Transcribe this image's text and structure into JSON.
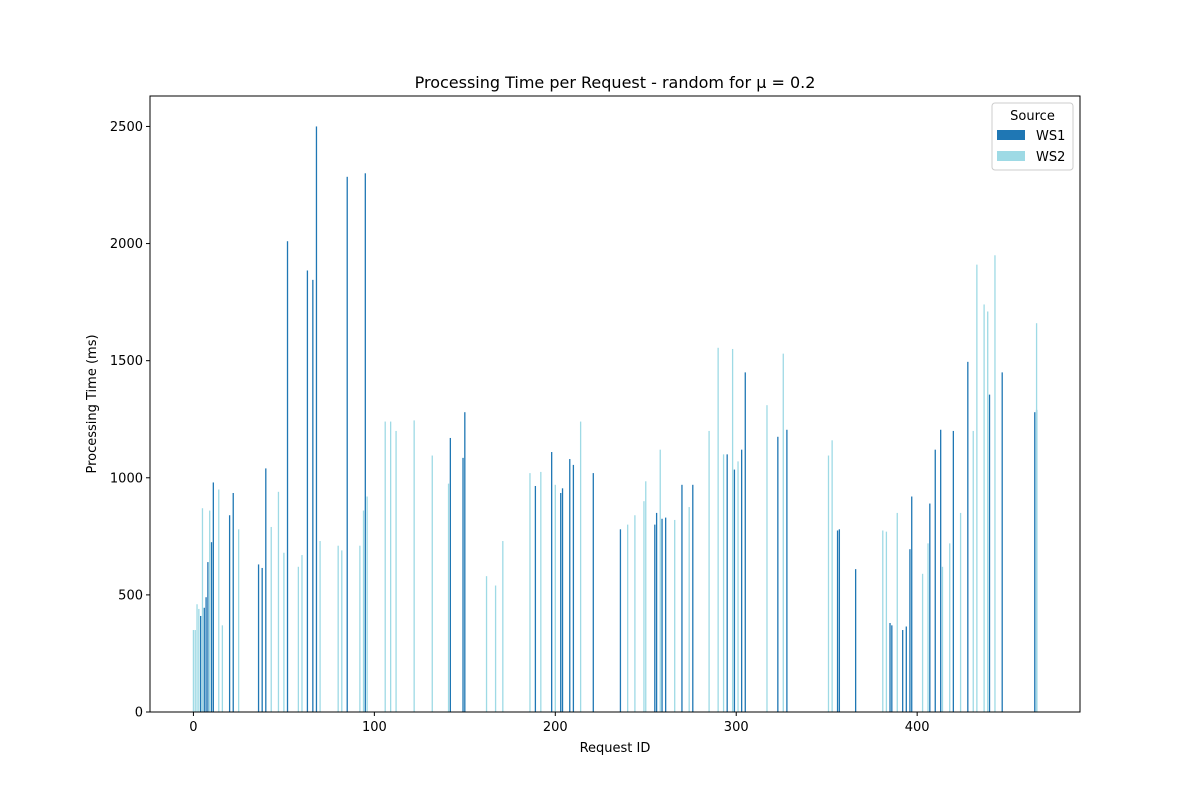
{
  "chart_data": {
    "type": "bar",
    "title": "Processing Time per Request - random for μ = 0.2",
    "xlabel": "Request ID",
    "ylabel": "Processing Time (ms)",
    "xlim": [
      -24,
      490
    ],
    "ylim": [
      0,
      2630
    ],
    "xticks": [
      0,
      100,
      200,
      300,
      400
    ],
    "yticks": [
      0,
      500,
      1000,
      1500,
      2000,
      2500
    ],
    "grid": false,
    "legend": {
      "title": "Source",
      "placement": "top-right"
    },
    "series": [
      {
        "name": "WS1",
        "color": "#1f77b4",
        "points": [
          [
            4,
            410
          ],
          [
            6,
            445
          ],
          [
            7,
            490
          ],
          [
            8,
            640
          ],
          [
            10,
            725
          ],
          [
            11,
            980
          ],
          [
            20,
            840
          ],
          [
            22,
            935
          ],
          [
            36,
            630
          ],
          [
            38,
            615
          ],
          [
            40,
            1040
          ],
          [
            52,
            2010
          ],
          [
            63,
            1885
          ],
          [
            66,
            1845
          ],
          [
            68,
            2500
          ],
          [
            85,
            2285
          ],
          [
            95,
            2300
          ],
          [
            142,
            1170
          ],
          [
            149,
            1085
          ],
          [
            150,
            1280
          ],
          [
            189,
            965
          ],
          [
            198,
            1110
          ],
          [
            203,
            935
          ],
          [
            204,
            955
          ],
          [
            208,
            1080
          ],
          [
            210,
            1055
          ],
          [
            221,
            1020
          ],
          [
            236,
            780
          ],
          [
            255,
            800
          ],
          [
            256,
            850
          ],
          [
            259,
            825
          ],
          [
            261,
            830
          ],
          [
            270,
            970
          ],
          [
            276,
            970
          ],
          [
            295,
            1100
          ],
          [
            299,
            1035
          ],
          [
            303,
            1120
          ],
          [
            305,
            1450
          ],
          [
            323,
            1175
          ],
          [
            328,
            1205
          ],
          [
            356,
            775
          ],
          [
            357,
            780
          ],
          [
            366,
            610
          ],
          [
            385,
            380
          ],
          [
            386,
            370
          ],
          [
            392,
            350
          ],
          [
            394,
            365
          ],
          [
            396,
            695
          ],
          [
            397,
            920
          ],
          [
            407,
            890
          ],
          [
            410,
            1120
          ],
          [
            413,
            1205
          ],
          [
            420,
            1200
          ],
          [
            428,
            1495
          ],
          [
            440,
            1355
          ],
          [
            447,
            1450
          ],
          [
            465,
            1280
          ],
          [
            466,
            1290
          ]
        ]
      },
      {
        "name": "WS2",
        "color": "#9edae5",
        "points": [
          [
            0,
            350
          ],
          [
            1,
            350
          ],
          [
            2,
            460
          ],
          [
            3,
            440
          ],
          [
            5,
            870
          ],
          [
            9,
            860
          ],
          [
            14,
            950
          ],
          [
            16,
            370
          ],
          [
            25,
            780
          ],
          [
            43,
            790
          ],
          [
            47,
            940
          ],
          [
            50,
            680
          ],
          [
            58,
            620
          ],
          [
            60,
            670
          ],
          [
            70,
            730
          ],
          [
            80,
            710
          ],
          [
            82,
            690
          ],
          [
            92,
            710
          ],
          [
            94,
            860
          ],
          [
            96,
            920
          ],
          [
            106,
            1240
          ],
          [
            109,
            1240
          ],
          [
            112,
            1200
          ],
          [
            122,
            1245
          ],
          [
            132,
            1095
          ],
          [
            141,
            975
          ],
          [
            162,
            580
          ],
          [
            167,
            540
          ],
          [
            171,
            730
          ],
          [
            186,
            1020
          ],
          [
            192,
            1025
          ],
          [
            200,
            970
          ],
          [
            214,
            1240
          ],
          [
            240,
            800
          ],
          [
            244,
            840
          ],
          [
            249,
            900
          ],
          [
            250,
            985
          ],
          [
            258,
            1120
          ],
          [
            266,
            820
          ],
          [
            274,
            875
          ],
          [
            285,
            1200
          ],
          [
            290,
            1555
          ],
          [
            293,
            1100
          ],
          [
            298,
            1550
          ],
          [
            301,
            1070
          ],
          [
            317,
            1310
          ],
          [
            326,
            1530
          ],
          [
            351,
            1095
          ],
          [
            353,
            1160
          ],
          [
            381,
            775
          ],
          [
            383,
            770
          ],
          [
            389,
            850
          ],
          [
            403,
            590
          ],
          [
            406,
            720
          ],
          [
            414,
            620
          ],
          [
            418,
            720
          ],
          [
            424,
            850
          ],
          [
            431,
            1200
          ],
          [
            433,
            1910
          ],
          [
            437,
            1740
          ],
          [
            439,
            1710
          ],
          [
            443,
            1950
          ],
          [
            466,
            1660
          ]
        ]
      }
    ]
  }
}
